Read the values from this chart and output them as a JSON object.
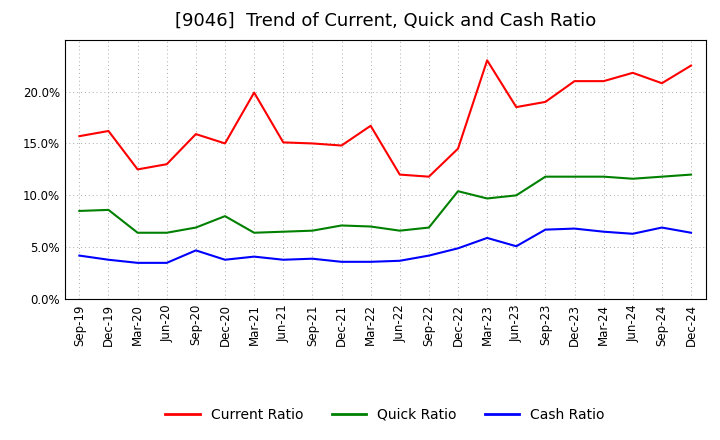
{
  "title": "[9046]  Trend of Current, Quick and Cash Ratio",
  "x_labels": [
    "Sep-19",
    "Dec-19",
    "Mar-20",
    "Jun-20",
    "Sep-20",
    "Dec-20",
    "Mar-21",
    "Jun-21",
    "Sep-21",
    "Dec-21",
    "Mar-22",
    "Jun-22",
    "Sep-22",
    "Dec-22",
    "Mar-23",
    "Jun-23",
    "Sep-23",
    "Dec-23",
    "Mar-24",
    "Jun-24",
    "Sep-24",
    "Dec-24"
  ],
  "current_ratio": [
    15.7,
    16.2,
    12.5,
    13.0,
    15.9,
    15.0,
    19.9,
    15.1,
    15.0,
    14.8,
    16.7,
    12.0,
    11.8,
    14.5,
    23.0,
    18.5,
    19.0,
    21.0,
    21.0,
    21.8,
    20.8,
    22.5
  ],
  "quick_ratio": [
    8.5,
    8.6,
    6.4,
    6.4,
    6.9,
    8.0,
    6.4,
    6.5,
    6.6,
    7.1,
    7.0,
    6.6,
    6.9,
    10.4,
    9.7,
    10.0,
    11.8,
    11.8,
    11.8,
    11.6,
    11.8,
    12.0
  ],
  "cash_ratio": [
    4.2,
    3.8,
    3.5,
    3.5,
    4.7,
    3.8,
    4.1,
    3.8,
    3.9,
    3.6,
    3.6,
    3.7,
    4.2,
    4.9,
    5.9,
    5.1,
    6.7,
    6.8,
    6.5,
    6.3,
    6.9,
    6.4
  ],
  "current_color": "#FF0000",
  "quick_color": "#008000",
  "cash_color": "#0000FF",
  "ylim": [
    0,
    25
  ],
  "yticks": [
    0.0,
    5.0,
    10.0,
    15.0,
    20.0
  ],
  "background_color": "#FFFFFF",
  "plot_bg_color": "#FFFFFF",
  "grid_color": "#AAAAAA",
  "title_fontsize": 13,
  "legend_fontsize": 10,
  "tick_fontsize": 8.5,
  "line_width": 1.5
}
